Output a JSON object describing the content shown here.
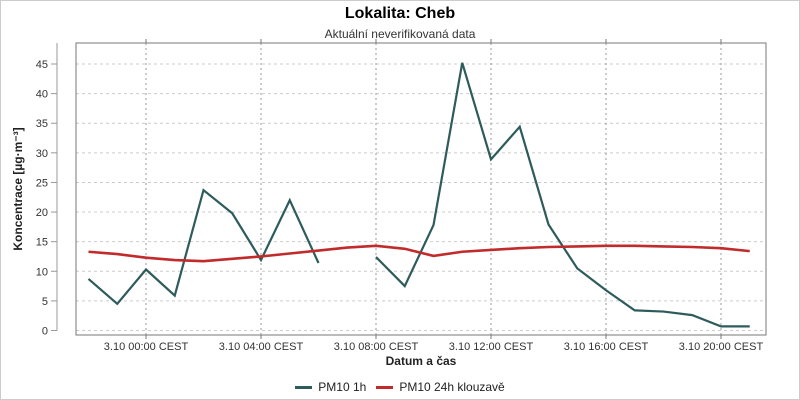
{
  "page": {
    "background": "#ffffff",
    "border_color": "#cccccc"
  },
  "style": {
    "frame_color": "#777777",
    "axis_color": "#999999",
    "grid_horizontal_color": "#cccccc",
    "grid_vertical_color": "#999999",
    "text_color": "#333333",
    "title_color": "#000000"
  },
  "chart_data": {
    "type": "line",
    "title": "Lokalita: Cheb",
    "subtitle": "Aktuální neverifikovaná data",
    "xlabel": "Datum a čas",
    "ylabel": "Koncentrace [µg·m⁻³]",
    "grid": true,
    "legend_position": "bottom",
    "y_ticks": [
      0,
      5,
      10,
      15,
      20,
      25,
      30,
      35,
      40,
      45
    ],
    "ylim": [
      -0.8,
      48.6
    ],
    "x_tick_labels": [
      "3.10 00:00 CEST",
      "3.10 04:00 CEST",
      "3.10 08:00 CEST",
      "3.10 12:00 CEST",
      "3.10 16:00 CEST",
      "3.10 20:00 CEST"
    ],
    "x_tick_indices": [
      2,
      6,
      10,
      14,
      18,
      22
    ],
    "categories": [
      "2.10 22:00",
      "2.10 23:00",
      "3.10 00:00",
      "3.10 01:00",
      "3.10 02:00",
      "3.10 03:00",
      "3.10 04:00",
      "3.10 05:00",
      "3.10 06:00",
      "3.10 07:00",
      "3.10 08:00",
      "3.10 09:00",
      "3.10 10:00",
      "3.10 11:00",
      "3.10 12:00",
      "3.10 13:00",
      "3.10 14:00",
      "3.10 15:00",
      "3.10 16:00",
      "3.10 17:00",
      "3.10 18:00",
      "3.10 19:00",
      "3.10 20:00",
      "3.10 21:00"
    ],
    "series": [
      {
        "name": "PM10 1h",
        "color": "#2E5B5B",
        "values": [
          8.7,
          4.5,
          10.3,
          5.9,
          23.7,
          19.8,
          11.9,
          22.0,
          11.4,
          null,
          12.4,
          7.5,
          17.8,
          45.2,
          28.9,
          34.4,
          17.9,
          10.5,
          6.8,
          3.4,
          3.2,
          2.6,
          0.7,
          0.7
        ]
      },
      {
        "name": "PM10 24h klouzavě",
        "color": "#C22B2B",
        "values": [
          13.3,
          12.9,
          12.3,
          11.9,
          11.7,
          12.1,
          12.5,
          13.0,
          13.5,
          14.0,
          14.3,
          13.8,
          12.6,
          13.3,
          13.6,
          13.9,
          14.1,
          14.2,
          14.3,
          14.3,
          14.2,
          14.1,
          13.9,
          13.4
        ]
      }
    ]
  }
}
